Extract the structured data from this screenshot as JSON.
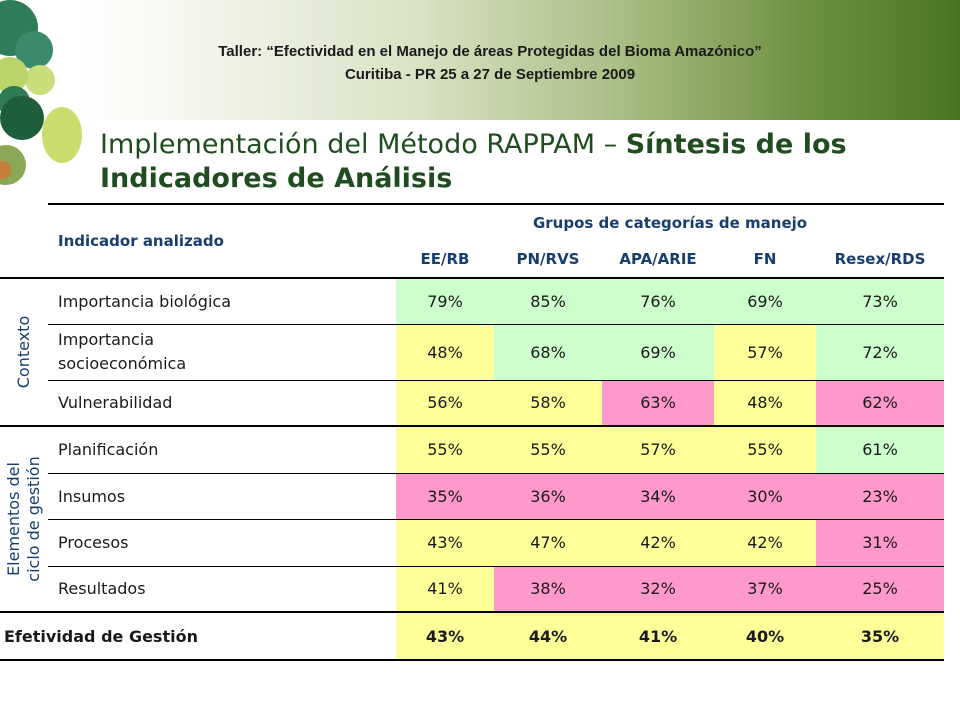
{
  "banner": {
    "line1": "Taller: “Efectividad en el Manejo de áreas Protegidas del Bioma Amazónico”",
    "line2": "Curitiba - PR 25 a 27 de Septiembre 2009"
  },
  "title": {
    "normal": "Implementación del Método RAPPAM – ",
    "bold": "Síntesis de los Indicadores de Análisis"
  },
  "table": {
    "indicator_header": "Indicador analizado",
    "group_header": "Grupos de categorías de manejo",
    "columns": [
      "EE/RB",
      "PN/RVS",
      "APA/ARIE",
      "FN",
      "Resex/RDS"
    ],
    "categories": {
      "contexto": "Contexto",
      "gestion_line1": "Elementos  del",
      "gestion_line2": "ciclo de gestión"
    },
    "rows": [
      {
        "label": "Importancia biológica",
        "values": [
          "79%",
          "85%",
          "76%",
          "69%",
          "73%"
        ]
      },
      {
        "label": "Importancia socioeconómica",
        "values": [
          "48%",
          "68%",
          "69%",
          "57%",
          "72%"
        ]
      },
      {
        "label": "Vulnerabilidad",
        "values": [
          "56%",
          "58%",
          "63%",
          "48%",
          "62%"
        ]
      },
      {
        "label": "Planificación",
        "values": [
          "55%",
          "55%",
          "57%",
          "55%",
          "61%"
        ]
      },
      {
        "label": "Insumos",
        "values": [
          "35%",
          "36%",
          "34%",
          "30%",
          "23%"
        ]
      },
      {
        "label": "Procesos",
        "values": [
          "43%",
          "47%",
          "42%",
          "42%",
          "31%"
        ]
      },
      {
        "label": "Resultados",
        "values": [
          "41%",
          "38%",
          "32%",
          "37%",
          "25%"
        ]
      }
    ],
    "total": {
      "label": "Efetividad de Gestión",
      "values": [
        "43%",
        "44%",
        "41%",
        "40%",
        "35%"
      ]
    },
    "colors": {
      "green": "#ccffcc",
      "yellow": "#ffff99",
      "pink": "#ff99cc"
    }
  }
}
